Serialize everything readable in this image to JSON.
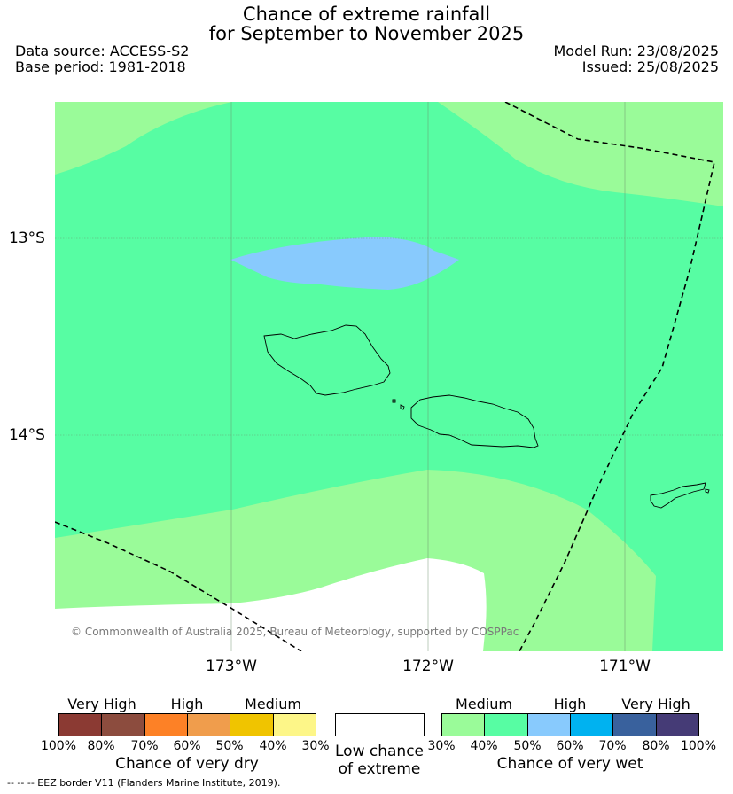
{
  "title": {
    "line1": "Chance of extreme rainfall",
    "line2": "for September to November 2025"
  },
  "info": {
    "data_source": "Data source: ACCESS-S2",
    "base_period": "Base period: 1981-2018",
    "model_run": "Model Run: 23/08/2025",
    "issued": "Issued: 25/08/2025"
  },
  "map": {
    "latitude_labels": [
      "13°S",
      "14°S"
    ],
    "longitude_labels": [
      "173°W",
      "172°W",
      "171°W"
    ],
    "copyright": "© Commonwealth of Australia 2025, Bureau of Meteorology, supported by COSPPac",
    "colors": {
      "medium_wet_light": "#9afb99",
      "medium_wet_dark": "#57fda3",
      "high_wet_light": "#88cafd",
      "low_chance": "#ffffff"
    }
  },
  "legend": {
    "dry": {
      "headings": [
        "Very High",
        "High",
        "Medium"
      ],
      "ticks": [
        "100%",
        "80%",
        "70%",
        "60%",
        "50%",
        "40%",
        "30%"
      ],
      "title": "Chance of very dry",
      "colors": [
        "#8b3a33",
        "#8c4c3e",
        "#fd8126",
        "#f09d4c",
        "#f0c400",
        "#fdf688"
      ]
    },
    "low": {
      "line1": "Low chance",
      "line2": "of extreme"
    },
    "wet": {
      "headings": [
        "Medium",
        "High",
        "Very High"
      ],
      "ticks": [
        "30%",
        "40%",
        "50%",
        "60%",
        "70%",
        "80%",
        "100%"
      ],
      "title": "Chance of very wet",
      "colors": [
        "#9afb99",
        "#57fda3",
        "#88cafd",
        "#00b2f0",
        "#39619d",
        "#453b76"
      ]
    }
  },
  "footnote": "--  --  -- EEZ border V11 (Flanders Marine Institute, 2019)."
}
